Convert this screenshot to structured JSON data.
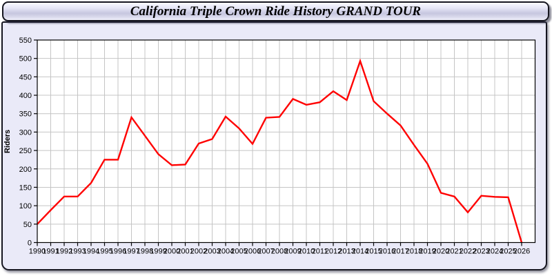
{
  "window": {
    "title": "California Triple Crown Ride History GRAND TOUR"
  },
  "colors": {
    "line": "#ff0000",
    "panel_background": "#eaeaf8",
    "plot_background": "#ffffff",
    "grid": "#c4c4c4",
    "axis": "#000000",
    "titlebar_gradient_mid": "#c6c6df"
  },
  "chart_data": {
    "type": "line",
    "title": "California Triple Crown Ride History GRAND TOUR",
    "xlabel": "",
    "ylabel": "Riders",
    "x": [
      1990,
      1991,
      1992,
      1993,
      1994,
      1995,
      1996,
      1997,
      1998,
      1999,
      2000,
      2001,
      2002,
      2003,
      2004,
      2005,
      2006,
      2007,
      2008,
      2009,
      2010,
      2011,
      2012,
      2013,
      2014,
      2015,
      2016,
      2017,
      2018,
      2019,
      2020,
      2021,
      2022,
      2023,
      2024,
      2025,
      2026
    ],
    "series": [
      {
        "name": "Riders",
        "color": "#ff0000",
        "values": [
          50,
          88,
          125,
          125,
          162,
          225,
          225,
          340,
          290,
          240,
          210,
          212,
          269,
          281,
          342,
          310,
          268,
          339,
          341,
          390,
          374,
          381,
          411,
          387,
          493,
          384,
          350,
          318,
          265,
          214,
          135,
          125,
          82,
          127,
          124,
          123,
          0
        ]
      }
    ],
    "ylim": [
      0,
      550
    ],
    "yticks": [
      0,
      50,
      100,
      150,
      200,
      250,
      300,
      350,
      400,
      450,
      500,
      550
    ],
    "xlim": [
      1990,
      2027
    ],
    "grid": true,
    "legend_position": "none"
  }
}
